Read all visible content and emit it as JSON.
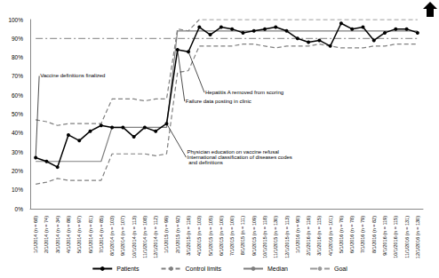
{
  "chart_data": {
    "type": "line",
    "categories": [
      "1/1/2014 (n = 68)",
      "2/1/2014 (n = 74)",
      "3/1/2014 (n = 34)",
      "4/1/2014 (n = 86)",
      "5/1/2014 (n = 97)",
      "6/1/2014 (n = 81)",
      "7/1/2014 (n = 85)",
      "8/1/2014 (n = 103)",
      "9/1/2014 (n = 107)",
      "10/1/2014 (n = 113)",
      "11/1/2014 (n = 108)",
      "12/1/2014 (n = 112)",
      "1/1/2015 (n = 99)",
      "2/1/2015 (n = 92)",
      "3/1/2015 (n = 116)",
      "4/1/2015 (n = 103)",
      "5/1/2015 (n = 105)",
      "6/1/2015 (n = 100)",
      "7/1/2015 (n = 100)",
      "8/1/2015 (n = 111)",
      "9/1/2015 (n = 109)",
      "10/1/2015 (n = 118)",
      "11/1/2015 (n = 130)",
      "12/1/2015 (n = 113)",
      "1/1/2016 (n = 90)",
      "2/1/2016 (n = 116)",
      "3/1/2016 (n = 115)",
      "4/1/2016 (n = 101)",
      "5/1/2016 (n = 76)",
      "6/1/2016 (n = 78)",
      "7/1/2016 (n = 79)",
      "8/1/2016 (n = 82)",
      "9/1/2016 (n = 119)",
      "10/1/2016 (n = 115)",
      "11/1/2016 (n = 131)",
      "12/1/2016 (n = 130)"
    ],
    "series": [
      {
        "name": "Patients",
        "color": "#000000",
        "marker": "circle",
        "line_style": "solid",
        "values": [
          27,
          25,
          22,
          39,
          36,
          41,
          44,
          43,
          43,
          38,
          43,
          41,
          45,
          84,
          83,
          96,
          92,
          96,
          95,
          93,
          94,
          95,
          96,
          94,
          90,
          88,
          89,
          86,
          98,
          95,
          96,
          89,
          93,
          95,
          95,
          93
        ]
      },
      {
        "name": "Control limits",
        "color": "#808080",
        "marker": "none",
        "line_style": "dashed",
        "values": [
          47,
          46,
          44,
          45,
          45,
          45,
          45,
          58,
          58,
          58,
          57,
          58,
          58,
          95,
          94,
          100,
          100,
          100,
          100,
          100,
          100,
          100,
          100,
          100,
          100,
          100,
          100,
          100,
          100,
          100,
          100,
          100,
          100,
          100,
          100,
          100
        ]
      },
      {
        "name": "Control limits",
        "color": "#808080",
        "marker": "none",
        "line_style": "dashed",
        "values": [
          13,
          14,
          16,
          15,
          15,
          15,
          15,
          29,
          29,
          29,
          29,
          28,
          29,
          72,
          73,
          86,
          86,
          86,
          86,
          87,
          87,
          86,
          85,
          86,
          86,
          86,
          87,
          86,
          85,
          85,
          85,
          86,
          86,
          87,
          87,
          87
        ]
      },
      {
        "name": "Median",
        "color": "#7f7f7f",
        "marker": "none",
        "line_style": "solid",
        "values": [
          25,
          25,
          25,
          25,
          25,
          25,
          25,
          43,
          43,
          43,
          43,
          43,
          43,
          94,
          94,
          94,
          94,
          94,
          94,
          94,
          94,
          94,
          94,
          94,
          94,
          94,
          94,
          94,
          94,
          94,
          94,
          94,
          94,
          94,
          94,
          94
        ]
      },
      {
        "name": "Goal",
        "color": "#999999",
        "marker": "none",
        "line_style": "dashdot",
        "values": [
          90,
          90,
          90,
          90,
          90,
          90,
          90,
          90,
          90,
          90,
          90,
          90,
          90,
          90,
          90,
          90,
          90,
          90,
          90,
          90,
          90,
          90,
          90,
          90,
          90,
          90,
          90,
          90,
          90,
          90,
          90,
          90,
          90,
          90,
          90,
          90
        ]
      }
    ],
    "ylim": [
      0,
      100
    ],
    "yticks": [
      {
        "value": 0,
        "label": "0%"
      },
      {
        "value": 10,
        "label": "10%"
      },
      {
        "value": 20,
        "label": "20%"
      },
      {
        "value": 30,
        "label": "30%"
      },
      {
        "value": 40,
        "label": "40%"
      },
      {
        "value": 50,
        "label": "50%"
      },
      {
        "value": 60,
        "label": "60%"
      },
      {
        "value": 70,
        "label": "70%"
      },
      {
        "value": 80,
        "label": "80%"
      },
      {
        "value": 90,
        "label": "90%"
      },
      {
        "value": 100,
        "label": "100%"
      }
    ],
    "grid": false,
    "legend": "bottom",
    "annotations": [
      {
        "text": "Vaccine definitions finalized",
        "x": "1/1/2014 (n = 68)"
      },
      {
        "text": "Failure data posting in clinic",
        "x": "2/1/2015 (n = 92)"
      },
      {
        "text": "Hepatitis A removed from scoring",
        "x": "3/1/2015 (n = 116)"
      },
      {
        "text": "Physician education on vaccine refusal International classification of diseases codes and definitions",
        "x": "1/1/2015 (n = 99)"
      }
    ]
  }
}
